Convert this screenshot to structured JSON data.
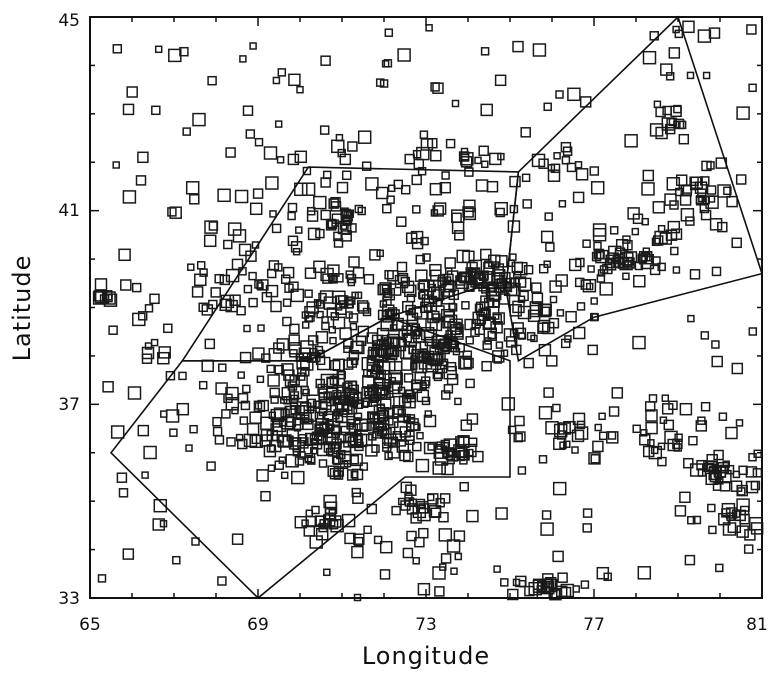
{
  "chart_data": {
    "type": "scatter",
    "title": "",
    "xlabel": "Longitude",
    "ylabel": "Latitude",
    "xlim": [
      65,
      81
    ],
    "ylim": [
      33,
      45
    ],
    "x_ticks": [
      "65",
      "69",
      "73",
      "77",
      "81"
    ],
    "y_ticks": [
      "33",
      "37",
      "41",
      "45"
    ],
    "grid": false,
    "marker": "open-square",
    "colors": {
      "ink": "#111111",
      "background": "#ffffff"
    },
    "regions": [
      {
        "vertices": [
          [
            67.2,
            37.9
          ],
          [
            70.2,
            41.9
          ],
          [
            75.2,
            41.8
          ],
          [
            74.9,
            39.4
          ],
          [
            74.2,
            39.4
          ],
          [
            72.1,
            38.8
          ],
          [
            70.2,
            37.9
          ]
        ]
      },
      {
        "vertices": [
          [
            75.2,
            41.8
          ],
          [
            79.0,
            45.0
          ],
          [
            81.0,
            39.7
          ],
          [
            77.0,
            38.8
          ],
          [
            75.2,
            37.9
          ],
          [
            74.9,
            39.4
          ]
        ]
      },
      {
        "vertices": [
          [
            67.2,
            37.9
          ],
          [
            65.5,
            36.0
          ],
          [
            69.0,
            33.0
          ],
          [
            72.5,
            35.5
          ],
          [
            75.0,
            35.5
          ],
          [
            75.0,
            37.9
          ],
          [
            72.1,
            38.8
          ],
          [
            70.2,
            37.9
          ]
        ]
      }
    ],
    "clusters": [
      {
        "center": [
          70.6,
          36.5
        ],
        "sigma": [
          0.9,
          0.55
        ],
        "count": 160
      },
      {
        "center": [
          71.8,
          37.3
        ],
        "sigma": [
          0.7,
          0.55
        ],
        "count": 110
      },
      {
        "center": [
          72.8,
          38.3
        ],
        "sigma": [
          0.8,
          0.35
        ],
        "count": 80
      },
      {
        "center": [
          72.0,
          39.2
        ],
        "sigma": [
          1.8,
          0.35
        ],
        "count": 120
      },
      {
        "center": [
          74.5,
          39.5
        ],
        "sigma": [
          0.9,
          0.3
        ],
        "count": 70
      },
      {
        "center": [
          75.2,
          38.6
        ],
        "sigma": [
          0.6,
          0.4
        ],
        "count": 40
      },
      {
        "center": [
          70.2,
          38.0
        ],
        "sigma": [
          0.5,
          0.5
        ],
        "count": 40
      },
      {
        "center": [
          73.4,
          38.2
        ],
        "sigma": [
          0.6,
          0.4
        ],
        "count": 45
      },
      {
        "center": [
          73.5,
          35.9
        ],
        "sigma": [
          0.3,
          0.2
        ],
        "count": 30
      },
      {
        "center": [
          72.3,
          36.4
        ],
        "sigma": [
          0.4,
          0.3
        ],
        "count": 30
      },
      {
        "center": [
          71.0,
          40.8
        ],
        "sigma": [
          0.3,
          0.2
        ],
        "count": 18
      },
      {
        "center": [
          77.6,
          40.0
        ],
        "sigma": [
          0.45,
          0.25
        ],
        "count": 45
      },
      {
        "center": [
          79.4,
          41.2
        ],
        "sigma": [
          0.4,
          0.3
        ],
        "count": 30
      },
      {
        "center": [
          78.5,
          40.3
        ],
        "sigma": [
          0.4,
          0.3
        ],
        "count": 15
      },
      {
        "center": [
          79.8,
          35.7
        ],
        "sigma": [
          0.35,
          0.15
        ],
        "count": 22
      },
      {
        "center": [
          75.9,
          33.2
        ],
        "sigma": [
          0.4,
          0.12
        ],
        "count": 25
      },
      {
        "center": [
          72.9,
          35.0
        ],
        "sigma": [
          0.25,
          0.2
        ],
        "count": 18
      },
      {
        "center": [
          70.6,
          34.6
        ],
        "sigma": [
          0.3,
          0.2
        ],
        "count": 18
      },
      {
        "center": [
          80.2,
          34.6
        ],
        "sigma": [
          0.5,
          0.15
        ],
        "count": 18
      },
      {
        "center": [
          78.5,
          36.5
        ],
        "sigma": [
          0.8,
          0.4
        ],
        "count": 30
      },
      {
        "center": [
          76.3,
          36.4
        ],
        "sigma": [
          0.4,
          0.3
        ],
        "count": 18
      },
      {
        "center": [
          68.8,
          36.8
        ],
        "sigma": [
          0.8,
          0.7
        ],
        "count": 40
      },
      {
        "center": [
          76.2,
          41.9
        ],
        "sigma": [
          0.4,
          0.3
        ],
        "count": 10
      },
      {
        "center": [
          78.7,
          42.8
        ],
        "sigma": [
          0.4,
          0.2
        ],
        "count": 14
      },
      {
        "center": [
          79.3,
          44.3
        ],
        "sigma": [
          0.6,
          0.4
        ],
        "count": 12
      },
      {
        "center": [
          73.0,
          41.4
        ],
        "sigma": [
          1.8,
          0.6
        ],
        "count": 60
      },
      {
        "center": [
          69.3,
          40.1
        ],
        "sigma": [
          1.0,
          0.8
        ],
        "count": 40
      },
      {
        "center": [
          73.0,
          34.2
        ],
        "sigma": [
          0.8,
          0.5
        ],
        "count": 25
      },
      {
        "center": [
          80.6,
          35.4
        ],
        "sigma": [
          0.3,
          0.6
        ],
        "count": 14
      },
      {
        "center": [
          65.4,
          39.2
        ],
        "sigma": [
          0.1,
          0.05
        ],
        "count": 8
      }
    ],
    "scatter_background": {
      "xlim": [
        65.2,
        80.8
      ],
      "ylim": [
        33.2,
        44.8
      ],
      "count": 260
    }
  }
}
